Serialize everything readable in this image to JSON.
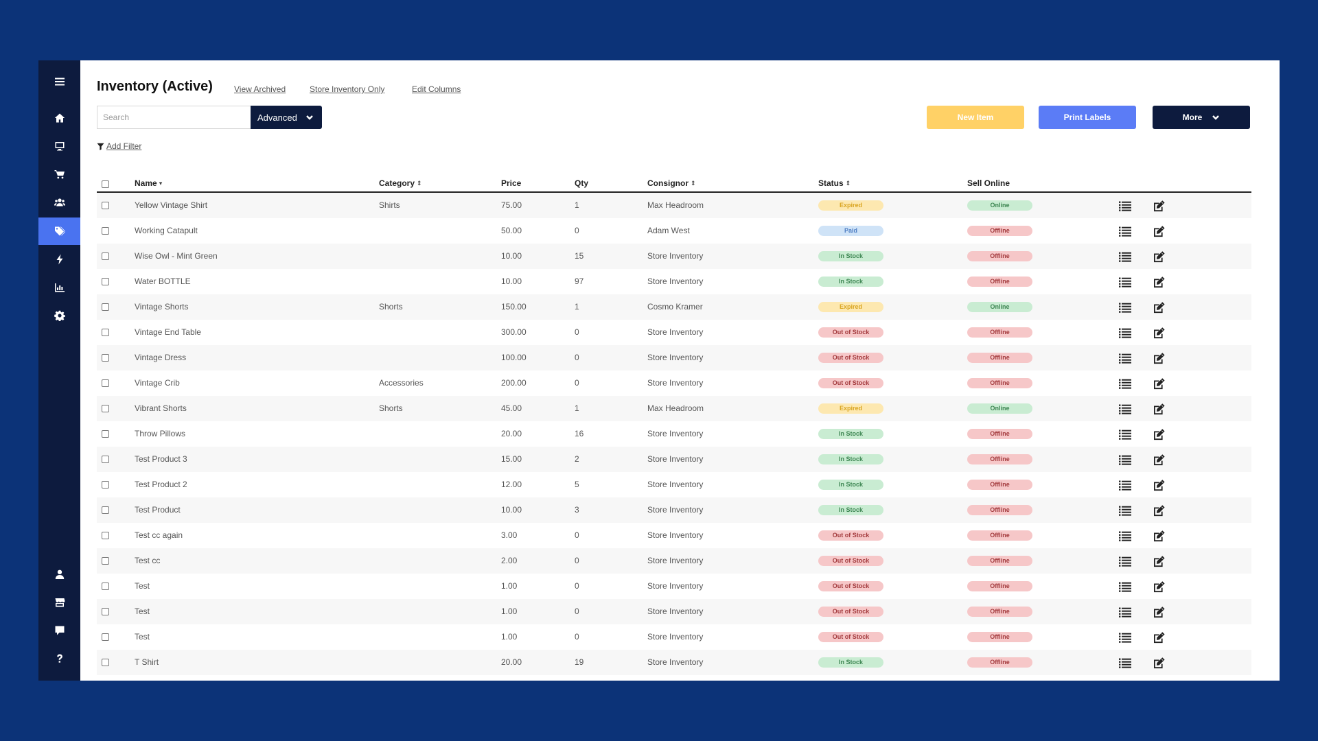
{
  "colors": {
    "background": "#0c3378",
    "sidebar": "#0d1b3e",
    "sidebar_active": "#4a73f0",
    "new_item": "#ffd166",
    "print_labels": "#5b7cf6",
    "more": "#0d1b3e"
  },
  "sidebar": {
    "menu_icon": "hamburger-icon",
    "top_items": [
      {
        "icon": "home-icon",
        "active": false
      },
      {
        "icon": "monitor-icon",
        "active": false
      },
      {
        "icon": "cart-icon",
        "active": false
      },
      {
        "icon": "users-icon",
        "active": false
      },
      {
        "icon": "tags-icon",
        "active": true
      },
      {
        "icon": "bolt-icon",
        "active": false
      },
      {
        "icon": "chart-icon",
        "active": false
      },
      {
        "icon": "gear-icon",
        "active": false
      }
    ],
    "bottom_items": [
      {
        "icon": "user-icon"
      },
      {
        "icon": "store-icon"
      },
      {
        "icon": "chat-icon"
      },
      {
        "icon": "question-icon"
      }
    ]
  },
  "header": {
    "title": "Inventory (Active)",
    "links": [
      "View Archived",
      "Store Inventory Only",
      "Edit Columns"
    ]
  },
  "search": {
    "placeholder": "Search",
    "value": "",
    "advanced_label": "Advanced"
  },
  "toolbar": {
    "new_item_label": "New Item",
    "print_labels_label": "Print Labels",
    "more_label": "More"
  },
  "filter": {
    "add_filter_label": "Add Filter"
  },
  "table": {
    "headers": {
      "name": "Name",
      "category": "Category",
      "price": "Price",
      "qty": "Qty",
      "consignor": "Consignor",
      "status": "Status",
      "sell_online": "Sell Online"
    },
    "rows": [
      {
        "name": "Yellow Vintage Shirt",
        "category": "Shirts",
        "price": "75.00",
        "qty": "1",
        "consignor": "Max Headroom",
        "status": "Expired",
        "online": "Online"
      },
      {
        "name": "Working Catapult",
        "category": "",
        "price": "50.00",
        "qty": "0",
        "consignor": "Adam West",
        "status": "Paid",
        "online": "Offline"
      },
      {
        "name": "Wise Owl - Mint Green",
        "category": "",
        "price": "10.00",
        "qty": "15",
        "consignor": "Store Inventory",
        "status": "In Stock",
        "online": "Offline"
      },
      {
        "name": "Water BOTTLE",
        "category": "",
        "price": "10.00",
        "qty": "97",
        "consignor": "Store Inventory",
        "status": "In Stock",
        "online": "Offline"
      },
      {
        "name": "Vintage Shorts",
        "category": "Shorts",
        "price": "150.00",
        "qty": "1",
        "consignor": "Cosmo Kramer",
        "status": "Expired",
        "online": "Online"
      },
      {
        "name": "Vintage End Table",
        "category": "",
        "price": "300.00",
        "qty": "0",
        "consignor": "Store Inventory",
        "status": "Out of Stock",
        "online": "Offline"
      },
      {
        "name": "Vintage Dress",
        "category": "",
        "price": "100.00",
        "qty": "0",
        "consignor": "Store Inventory",
        "status": "Out of Stock",
        "online": "Offline"
      },
      {
        "name": "Vintage Crib",
        "category": "Accessories",
        "price": "200.00",
        "qty": "0",
        "consignor": "Store Inventory",
        "status": "Out of Stock",
        "online": "Offline"
      },
      {
        "name": "Vibrant Shorts",
        "category": "Shorts",
        "price": "45.00",
        "qty": "1",
        "consignor": "Max Headroom",
        "status": "Expired",
        "online": "Online"
      },
      {
        "name": "Throw Pillows",
        "category": "",
        "price": "20.00",
        "qty": "16",
        "consignor": "Store Inventory",
        "status": "In Stock",
        "online": "Offline"
      },
      {
        "name": "Test Product 3",
        "category": "",
        "price": "15.00",
        "qty": "2",
        "consignor": "Store Inventory",
        "status": "In Stock",
        "online": "Offline"
      },
      {
        "name": "Test Product 2",
        "category": "",
        "price": "12.00",
        "qty": "5",
        "consignor": "Store Inventory",
        "status": "In Stock",
        "online": "Offline"
      },
      {
        "name": "Test Product",
        "category": "",
        "price": "10.00",
        "qty": "3",
        "consignor": "Store Inventory",
        "status": "In Stock",
        "online": "Offline"
      },
      {
        "name": "Test cc again",
        "category": "",
        "price": "3.00",
        "qty": "0",
        "consignor": "Store Inventory",
        "status": "Out of Stock",
        "online": "Offline"
      },
      {
        "name": "Test cc",
        "category": "",
        "price": "2.00",
        "qty": "0",
        "consignor": "Store Inventory",
        "status": "Out of Stock",
        "online": "Offline"
      },
      {
        "name": "Test",
        "category": "",
        "price": "1.00",
        "qty": "0",
        "consignor": "Store Inventory",
        "status": "Out of Stock",
        "online": "Offline"
      },
      {
        "name": "Test",
        "category": "",
        "price": "1.00",
        "qty": "0",
        "consignor": "Store Inventory",
        "status": "Out of Stock",
        "online": "Offline"
      },
      {
        "name": "Test",
        "category": "",
        "price": "1.00",
        "qty": "0",
        "consignor": "Store Inventory",
        "status": "Out of Stock",
        "online": "Offline"
      },
      {
        "name": "T Shirt",
        "category": "",
        "price": "20.00",
        "qty": "19",
        "consignor": "Store Inventory",
        "status": "In Stock",
        "online": "Offline"
      }
    ]
  }
}
